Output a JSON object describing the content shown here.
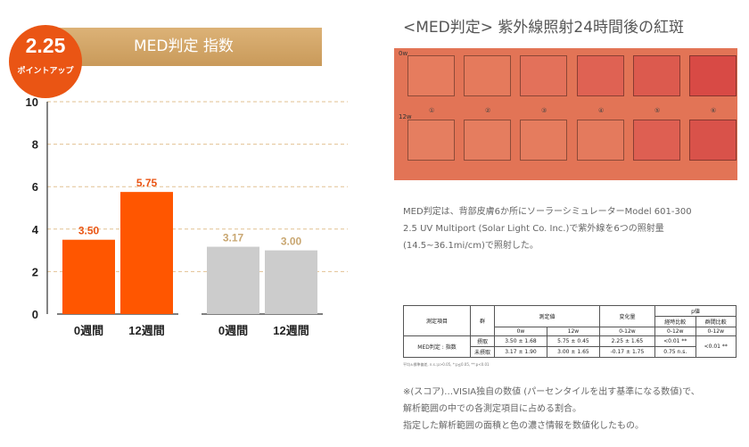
{
  "badge": {
    "value": "2.25",
    "sub": "ポイントアップ"
  },
  "header": {
    "title": "MED判定 指数"
  },
  "colors": {
    "orange": "#ff5600",
    "gray": "#cccccc",
    "gold": "#d6a865",
    "orange_label": "#ea5514",
    "gray_label": "#c9a772"
  },
  "chart_data": {
    "type": "bar",
    "ylim": [
      0,
      10
    ],
    "yticks": [
      0,
      2,
      4,
      6,
      8,
      10
    ],
    "groups": [
      {
        "color": "orange",
        "bars": [
          {
            "category": "0週間",
            "value": 3.5,
            "label": "3.50"
          },
          {
            "category": "12週間",
            "value": 5.75,
            "label": "5.75"
          }
        ]
      },
      {
        "color": "gray",
        "bars": [
          {
            "category": "0週間",
            "value": 3.17,
            "label": "3.17"
          },
          {
            "category": "12週間",
            "value": 3.0,
            "label": "3.00"
          }
        ]
      }
    ],
    "grid": true
  },
  "right": {
    "title": "<MED判定> 紫外線照射24時間後の紅斑",
    "photo": {
      "row1_label": "0w",
      "row2_label": "12w",
      "numbers": [
        "①",
        "②",
        "③",
        "④",
        "⑤",
        "⑥"
      ],
      "row1_colors": [
        "#e67c5e",
        "#e57a5c",
        "#e3715a",
        "#df6253",
        "#dc5a4e",
        "#d84a45"
      ],
      "row2_colors": [
        "#e57e60",
        "#e57d5f",
        "#e57c5e",
        "#e47a5d",
        "#de5f52",
        "#d9524a"
      ]
    },
    "description": [
      "MED判定は、背部皮膚6か所にソーラーシミュレーターModel 601-300",
      "2.5 UV Multiport (Solar Light Co. Inc.)で紫外線を6つの照射量",
      "(14.5~36.1mi/cm)で照射した。"
    ],
    "table": {
      "h_item": "測定項目",
      "h_group": "群",
      "h_measure": "測定値",
      "h_change": "変化量",
      "h_p": "p値",
      "h_0w": "0w",
      "h_12w": "12w",
      "h_0_12w": "0-12w",
      "h_time": "経時比較",
      "h_between": "群間比較",
      "h_time_sub": "0-12w",
      "h_between_sub": "0-12w",
      "item": "MED判定 : 指数",
      "rows": [
        {
          "group": "摂取",
          "v0": "3.50 ± 1.68",
          "v12": "5.75 ± 0.45",
          "chg": "2.25 ± 1.65",
          "p_time": "<0.01 **",
          "p_between": "<0.01 **"
        },
        {
          "group": "未摂取",
          "v0": "3.17 ± 1.90",
          "v12": "3.00 ± 1.65",
          "chg": "-0.17 ± 1.75",
          "p_time": "0.75 n.s."
        }
      ],
      "footnote": "平均±標準偏差, n.s.:p>0.05, *:p≦0.05, **:p<0.01"
    },
    "note": [
      "※(スコア)…VISIA独自の数値 (パーセンタイルを出す基準になる数値)で、",
      "解析範囲の中での各測定項目に占める割合。",
      "指定した解析範囲の面積と色の濃さ情報を数値化したもの。"
    ]
  }
}
